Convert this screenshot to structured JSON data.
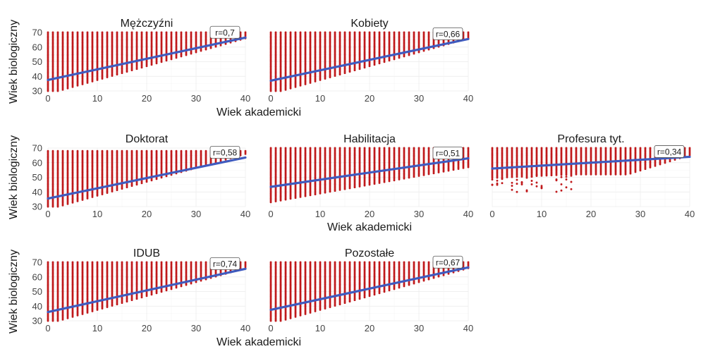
{
  "chart_data": {
    "type": "scatter",
    "layout": "facet-grid",
    "xlabel": "Wiek akademicki",
    "ylabel": "Wiek biologiczny",
    "xlim": [
      0,
      40
    ],
    "ylim": [
      30,
      70
    ],
    "x_ticks": [
      0,
      10,
      20,
      30,
      40
    ],
    "y_ticks": [
      30,
      40,
      50,
      60,
      70
    ],
    "grid": true,
    "point_color": "#c0191b",
    "line_color": "#3f5bbf",
    "panels": [
      {
        "title": "Mężczyźni",
        "r_label": "r=0,7",
        "fit": {
          "x0": 0,
          "y0": 37.5,
          "x1": 40,
          "y1": 66.5
        },
        "points": {
          "x_max_rule": "x<=40",
          "top": 70,
          "scattered_outliers": []
        }
      },
      {
        "title": "Kobiety",
        "r_label": "r=0,66",
        "fit": {
          "x0": 0,
          "y0": 37,
          "x1": 40,
          "y1": 65.5
        },
        "points": {
          "top": 70
        }
      },
      {
        "title": "Doktorat",
        "r_label": "r=0,58",
        "fit": {
          "x0": 0,
          "y0": 35.5,
          "x1": 40,
          "y1": 63.5
        },
        "points": {
          "top": 68
        }
      },
      {
        "title": "Habilitacja",
        "r_label": "r=0,51",
        "fit": {
          "x0": 0,
          "y0": 43.5,
          "x1": 40,
          "y1": 63
        },
        "points": {
          "top": 70
        }
      },
      {
        "title": "Profesura tyt.",
        "r_label": "r=0,34",
        "fit": {
          "x0": 0,
          "y0": 56,
          "x1": 40,
          "y1": 64
        },
        "points": {
          "top": 70
        }
      },
      {
        "title": "IDUB",
        "r_label": "r=0,74",
        "fit": {
          "x0": 0,
          "y0": 36,
          "x1": 40,
          "y1": 65.5
        },
        "points": {
          "top": 70
        }
      },
      {
        "title": "Pozostałe",
        "r_label": "r=0,67",
        "fit": {
          "x0": 0,
          "y0": 37.5,
          "x1": 40,
          "y1": 66.5
        },
        "points": {
          "top": 70
        }
      }
    ]
  }
}
